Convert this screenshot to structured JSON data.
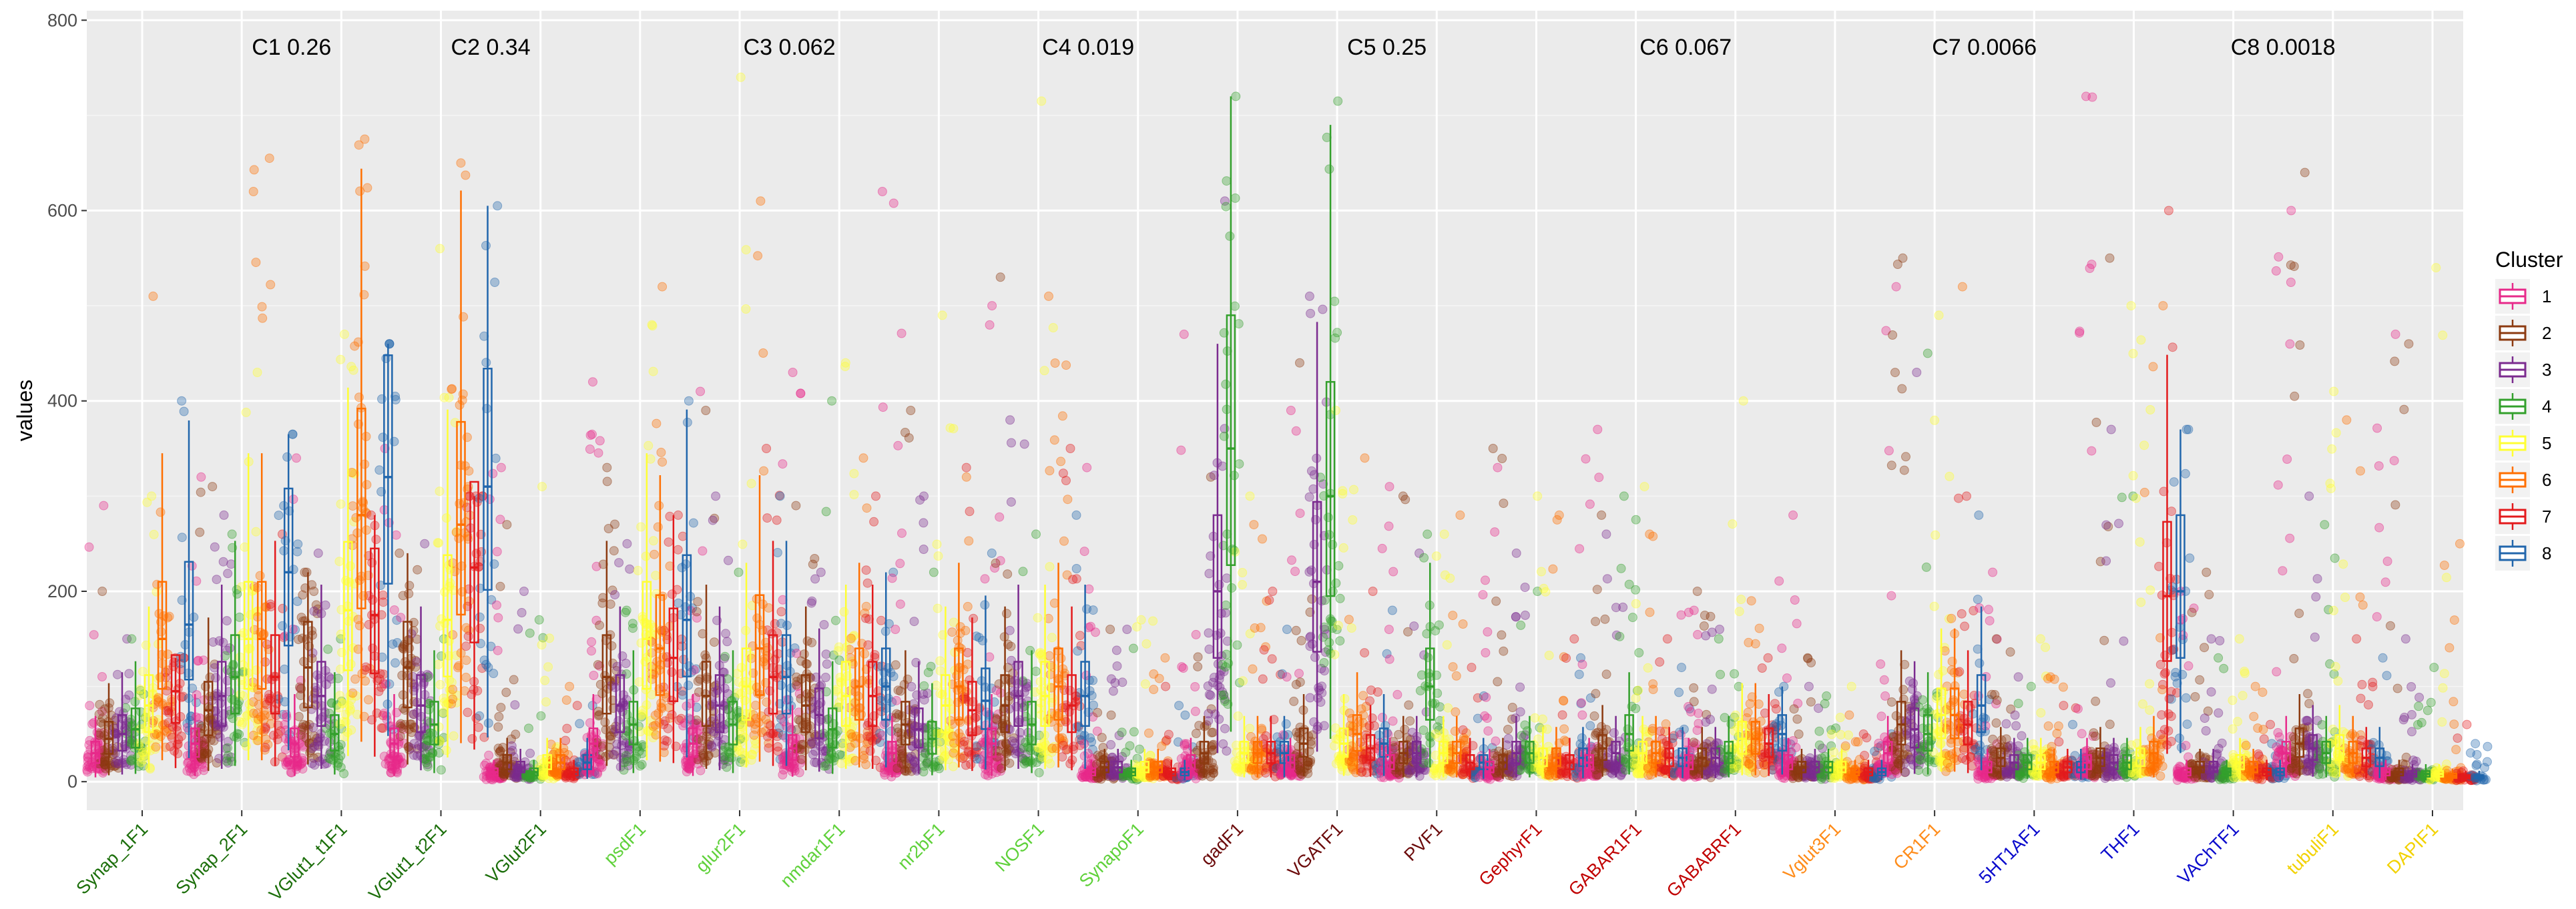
{
  "chart_data": {
    "type": "scatter",
    "subtype": "jittered points with boxplots",
    "ylabel": "values",
    "xlabel": "",
    "ylim": [
      -30,
      810
    ],
    "yticks": [
      0,
      200,
      400,
      600,
      800
    ],
    "grid": true,
    "legend": {
      "title": "Cluster",
      "position": "right",
      "entries": [
        {
          "label": "1",
          "color": "#E7298A"
        },
        {
          "label": "2",
          "color": "#8C3A10"
        },
        {
          "label": "3",
          "color": "#7B2B8F"
        },
        {
          "label": "4",
          "color": "#33A02C"
        },
        {
          "label": "5",
          "color": "#FFFF33"
        },
        {
          "label": "6",
          "color": "#FF6F00"
        },
        {
          "label": "7",
          "color": "#E31A1C"
        },
        {
          "label": "8",
          "color": "#2166AC"
        }
      ]
    },
    "categories": [
      {
        "label": "Synap_1F1",
        "color": "#1B6E0A"
      },
      {
        "label": "Synap_2F1",
        "color": "#1B6E0A"
      },
      {
        "label": "VGlut1_t1F1",
        "color": "#1B6E0A"
      },
      {
        "label": "VGlut1_t2F1",
        "color": "#1B6E0A"
      },
      {
        "label": "VGlut2F1",
        "color": "#1B6E0A"
      },
      {
        "label": "psdF1",
        "color": "#5FD13A"
      },
      {
        "label": "glur2F1",
        "color": "#5FD13A"
      },
      {
        "label": "nmdar1F1",
        "color": "#5FD13A"
      },
      {
        "label": "nr2bF1",
        "color": "#5FD13A"
      },
      {
        "label": "NOSF1",
        "color": "#5FD13A"
      },
      {
        "label": "SynapoF1",
        "color": "#5FD13A"
      },
      {
        "label": "gadF1",
        "color": "#6B0A0A"
      },
      {
        "label": "VGATF1",
        "color": "#6B0A0A"
      },
      {
        "label": "PVF1",
        "color": "#6B0A0A"
      },
      {
        "label": "GephyrF1",
        "color": "#C00000"
      },
      {
        "label": "GABAR1F1",
        "color": "#C00000"
      },
      {
        "label": "GABABRF1",
        "color": "#C00000"
      },
      {
        "label": "Vglut3F1",
        "color": "#FF8C1A"
      },
      {
        "label": "CR1F1",
        "color": "#FF8C1A"
      },
      {
        "label": "5HT1AF1",
        "color": "#0A0ACC"
      },
      {
        "label": "THF1",
        "color": "#0A0ACC"
      },
      {
        "label": "VAChTF1",
        "color": "#0A0ACC"
      },
      {
        "label": "tubuliF1",
        "color": "#F2D200"
      },
      {
        "label": "DAPIF1",
        "color": "#F2D200"
      }
    ],
    "annotations": [
      {
        "text": "C1  0.26",
        "x": 1.5
      },
      {
        "text": "C2  0.34",
        "x": 3.5
      },
      {
        "text": "C3  0.062",
        "x": 6.5
      },
      {
        "text": "C4  0.019",
        "x": 9.5
      },
      {
        "text": "C5  0.25",
        "x": 12.5
      },
      {
        "text": "C6  0.067",
        "x": 15.5
      },
      {
        "text": "C7  0.0066",
        "x": 18.5
      },
      {
        "text": "C8  0.0018",
        "x": 21.5
      }
    ],
    "medians": [
      [
        30,
        45,
        50,
        55,
        80,
        150,
        95,
        165
      ],
      [
        40,
        75,
        90,
        110,
        150,
        150,
        110,
        220
      ],
      [
        40,
        120,
        90,
        50,
        180,
        280,
        175,
        320
      ],
      [
        40,
        120,
        80,
        60,
        170,
        270,
        225,
        310
      ],
      [
        10,
        20,
        15,
        10,
        20,
        20,
        10,
        20
      ],
      [
        40,
        110,
        80,
        60,
        150,
        140,
        130,
        170
      ],
      [
        40,
        90,
        80,
        60,
        100,
        140,
        110,
        110
      ],
      [
        35,
        80,
        70,
        55,
        90,
        100,
        90,
        100
      ],
      [
        30,
        60,
        55,
        45,
        80,
        100,
        75,
        85
      ],
      [
        40,
        80,
        90,
        60,
        90,
        100,
        80,
        90
      ],
      [
        10,
        15,
        15,
        10,
        15,
        15,
        10,
        10
      ],
      [
        20,
        30,
        200,
        350,
        30,
        30,
        30,
        30
      ],
      [
        20,
        40,
        210,
        300,
        40,
        50,
        35,
        40
      ],
      [
        20,
        30,
        30,
        100,
        30,
        30,
        20,
        20
      ],
      [
        15,
        20,
        30,
        30,
        25,
        25,
        20,
        25
      ],
      [
        20,
        35,
        30,
        50,
        30,
        30,
        25,
        25
      ],
      [
        20,
        25,
        25,
        30,
        45,
        45,
        40,
        50
      ],
      [
        20,
        15,
        15,
        15,
        15,
        10,
        10,
        10
      ],
      [
        30,
        60,
        55,
        50,
        70,
        70,
        60,
        80
      ],
      [
        15,
        25,
        20,
        20,
        20,
        15,
        15,
        15
      ],
      [
        20,
        25,
        20,
        20,
        25,
        30,
        195,
        200
      ],
      [
        10,
        15,
        15,
        10,
        20,
        15,
        10,
        10
      ],
      [
        30,
        40,
        35,
        30,
        35,
        30,
        25,
        25
      ],
      [
        10,
        10,
        8,
        8,
        8,
        6,
        5,
        5
      ]
    ],
    "maxima": [
      [
        290,
        200,
        150,
        150,
        300,
        510,
        130,
        400
      ],
      [
        320,
        310,
        280,
        260,
        430,
        655,
        260,
        365
      ],
      [
        340,
        220,
        240,
        150,
        470,
        675,
        280,
        460
      ],
      [
        350,
        240,
        250,
        150,
        560,
        650,
        300,
        605
      ],
      [
        330,
        270,
        200,
        170,
        310,
        100,
        80,
        80
      ],
      [
        420,
        330,
        250,
        180,
        480,
        520,
        280,
        400
      ],
      [
        410,
        390,
        300,
        220,
        740,
        610,
        350,
        300
      ],
      [
        430,
        290,
        220,
        400,
        440,
        340,
        300,
        220
      ],
      [
        620,
        390,
        300,
        220,
        490,
        320,
        330,
        240
      ],
      [
        500,
        530,
        380,
        260,
        715,
        510,
        350,
        280
      ],
      [
        330,
        160,
        160,
        140,
        170,
        130,
        100,
        80
      ],
      [
        470,
        320,
        610,
        720,
        300,
        270,
        200,
        160
      ],
      [
        390,
        440,
        510,
        715,
        390,
        340,
        200,
        180
      ],
      [
        310,
        300,
        240,
        260,
        260,
        280,
        120,
        90
      ],
      [
        330,
        350,
        240,
        200,
        300,
        280,
        150,
        130
      ],
      [
        370,
        280,
        260,
        300,
        310,
        260,
        150,
        120
      ],
      [
        180,
        200,
        160,
        150,
        400,
        190,
        130,
        100
      ],
      [
        280,
        130,
        100,
        90,
        100,
        70,
        50,
        50
      ],
      [
        520,
        550,
        430,
        450,
        490,
        520,
        300,
        280
      ],
      [
        220,
        150,
        110,
        100,
        150,
        110,
        80,
        60
      ],
      [
        720,
        550,
        370,
        300,
        500,
        500,
        600,
        370
      ],
      [
        200,
        220,
        150,
        130,
        150,
        100,
        60,
        40
      ],
      [
        600,
        640,
        300,
        270,
        410,
        380,
        150,
        130
      ],
      [
        470,
        460,
        150,
        120,
        540,
        250,
        60,
        40
      ]
    ]
  }
}
